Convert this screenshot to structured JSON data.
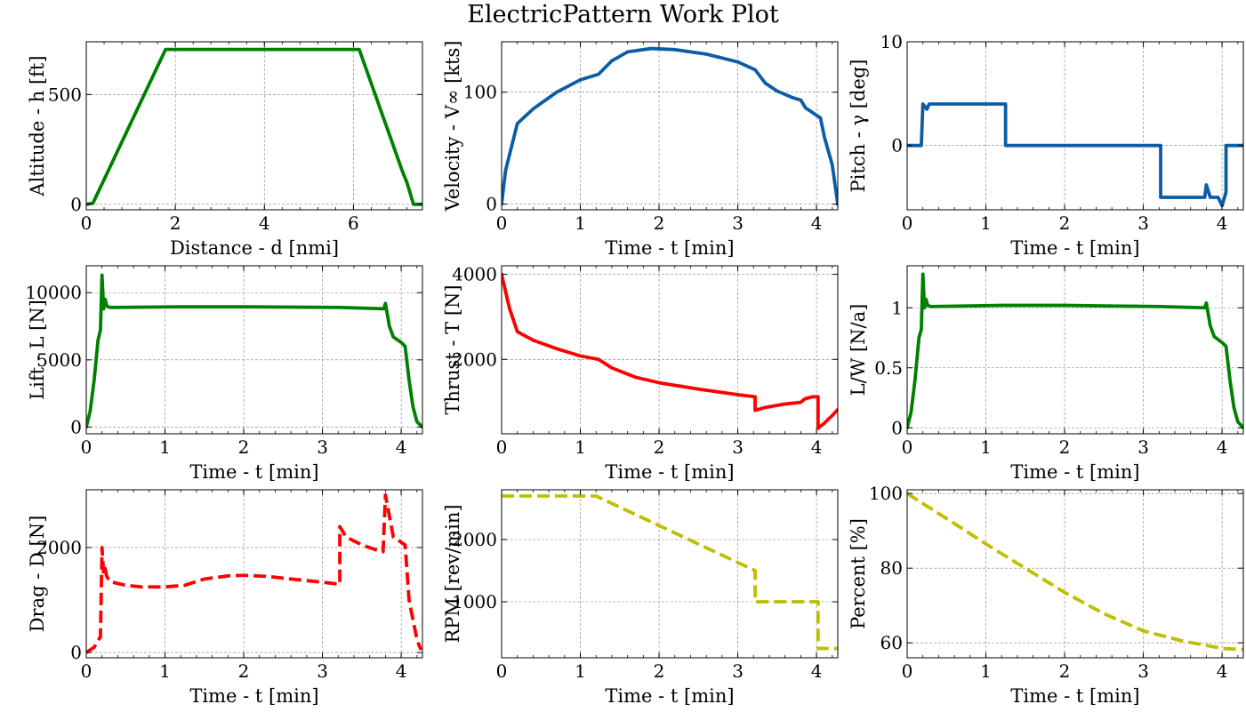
{
  "title": "ElectricPattern Work Plot",
  "colors": {
    "green": "#008000",
    "blue": "#0c5da5",
    "red": "#ff0000",
    "yellow": "#bfbf00",
    "grid": "#808080"
  },
  "chart_data": [
    {
      "type": "line",
      "xlabel": "Distance - d [nmi]",
      "ylabel": "Altitude - h [ft]",
      "xlim": [
        0,
        7.55
      ],
      "ylim": [
        -25,
        740
      ],
      "xticks": [
        0,
        2,
        4,
        6
      ],
      "yticks": [
        0,
        500
      ],
      "grid": true,
      "series": [
        {
          "color": "#008000",
          "dashed": false,
          "x": [
            0,
            0.15,
            1.78,
            6.13,
            7.1,
            7.2,
            7.35,
            7.55
          ],
          "y": [
            0,
            5,
            705,
            705,
            150,
            100,
            0,
            0
          ]
        }
      ]
    },
    {
      "type": "line",
      "xlabel": "Time - t [min]",
      "ylabel": "Velocity - V∞ [kts]",
      "xlim": [
        0,
        4.27
      ],
      "ylim": [
        -5,
        145
      ],
      "xticks": [
        0,
        1,
        2,
        3,
        4
      ],
      "yticks": [
        0,
        100
      ],
      "grid": true,
      "series": [
        {
          "color": "#0c5da5",
          "dashed": false,
          "x": [
            0,
            0.05,
            0.2,
            0.4,
            0.7,
            1.0,
            1.23,
            1.4,
            1.6,
            1.9,
            2.2,
            2.6,
            3.0,
            3.22,
            3.35,
            3.5,
            3.7,
            3.8,
            3.86,
            4.05,
            4.1,
            4.2,
            4.27
          ],
          "y": [
            0,
            30,
            72,
            85,
            100,
            111,
            116,
            128,
            136,
            139,
            138,
            134,
            127,
            120,
            108,
            101,
            95,
            93,
            86,
            77,
            60,
            35,
            0
          ]
        }
      ]
    },
    {
      "type": "line",
      "xlabel": "Time - t [min]",
      "ylabel": "Pitch - γ [deg]",
      "xlim": [
        0,
        4.27
      ],
      "ylim": [
        -6.2,
        10
      ],
      "xticks": [
        0,
        1,
        2,
        3,
        4
      ],
      "yticks": [
        0,
        10
      ],
      "grid": true,
      "series": [
        {
          "color": "#0c5da5",
          "dashed": false,
          "x": [
            0,
            0.18,
            0.2,
            0.25,
            0.28,
            0.32,
            1.25,
            1.25,
            3.22,
            3.22,
            3.78,
            3.8,
            3.85,
            3.95,
            4.0,
            4.05,
            4.05,
            4.27
          ],
          "y": [
            0,
            0,
            4,
            3.5,
            4,
            4,
            4,
            0,
            0,
            -5,
            -5,
            -3.8,
            -5,
            -5,
            -5.8,
            -4.5,
            0,
            0
          ]
        }
      ]
    },
    {
      "type": "line",
      "xlabel": "Time - t [min]",
      "ylabel": "Lift - L [N]",
      "xlim": [
        0,
        4.27
      ],
      "ylim": [
        -500,
        12000
      ],
      "xticks": [
        0,
        1,
        2,
        3,
        4
      ],
      "yticks": [
        0,
        5000,
        10000
      ],
      "grid": true,
      "series": [
        {
          "color": "#008000",
          "dashed": false,
          "x": [
            0,
            0.05,
            0.1,
            0.15,
            0.18,
            0.2,
            0.22,
            0.24,
            0.26,
            0.3,
            1.2,
            2.0,
            3.22,
            3.78,
            3.8,
            3.85,
            3.9,
            4.0,
            4.05,
            4.1,
            4.15,
            4.2,
            4.27
          ],
          "y": [
            0,
            1200,
            3500,
            6500,
            7200,
            11300,
            8800,
            9500,
            9000,
            8900,
            8950,
            8950,
            8900,
            8800,
            9200,
            7500,
            6700,
            6300,
            6000,
            3500,
            1500,
            400,
            0
          ]
        }
      ]
    },
    {
      "type": "line",
      "xlabel": "Time - t [min]",
      "ylabel": "Thrust - T [N]",
      "xlim": [
        0,
        4.27
      ],
      "ylim": [
        250,
        4200
      ],
      "xticks": [
        0,
        1,
        2,
        3,
        4
      ],
      "yticks": [
        2000,
        4000
      ],
      "grid": true,
      "series": [
        {
          "color": "#ff0000",
          "dashed": false,
          "x": [
            0,
            0.05,
            0.1,
            0.2,
            0.4,
            0.7,
            1.0,
            1.23,
            1.4,
            1.7,
            2.0,
            2.5,
            3.0,
            3.22,
            3.22,
            3.35,
            3.6,
            3.8,
            3.85,
            3.95,
            4.02,
            4.02,
            4.1,
            4.2,
            4.27
          ],
          "y": [
            4000,
            3600,
            3200,
            2650,
            2450,
            2250,
            2080,
            2000,
            1800,
            1580,
            1450,
            1300,
            1170,
            1120,
            800,
            870,
            950,
            990,
            1070,
            1120,
            1120,
            380,
            500,
            680,
            820
          ]
        }
      ]
    },
    {
      "type": "line",
      "xlabel": "Time - t [min]",
      "ylabel": "L/W [N/a]",
      "xlim": [
        0,
        4.27
      ],
      "ylim": [
        -0.05,
        1.35
      ],
      "xticks": [
        0,
        1,
        2,
        3,
        4
      ],
      "yticks": [
        0.0,
        0.5,
        1.0
      ],
      "grid": true,
      "series": [
        {
          "color": "#008000",
          "dashed": false,
          "x": [
            0,
            0.05,
            0.1,
            0.15,
            0.18,
            0.2,
            0.22,
            0.24,
            0.26,
            0.3,
            1.2,
            2.0,
            3.22,
            3.78,
            3.8,
            3.85,
            3.9,
            4.0,
            4.05,
            4.1,
            4.15,
            4.2,
            4.27
          ],
          "y": [
            0,
            0.13,
            0.4,
            0.75,
            0.82,
            1.28,
            1.0,
            1.07,
            1.02,
            1.01,
            1.02,
            1.02,
            1.01,
            1.0,
            1.04,
            0.85,
            0.76,
            0.71,
            0.68,
            0.4,
            0.17,
            0.05,
            0
          ]
        }
      ]
    },
    {
      "type": "line",
      "xlabel": "Time - t [min]",
      "ylabel": "Drag - D [N]",
      "xlim": [
        0,
        4.27
      ],
      "ylim": [
        -100,
        3100
      ],
      "xticks": [
        0,
        1,
        2,
        3,
        4
      ],
      "yticks": [
        0,
        2000
      ],
      "grid": true,
      "series": [
        {
          "color": "#ff0000",
          "dashed": true,
          "x": [
            0,
            0.1,
            0.18,
            0.2,
            0.22,
            0.24,
            0.26,
            0.3,
            0.5,
            0.7,
            1.0,
            1.25,
            1.5,
            1.8,
            2.0,
            2.3,
            2.6,
            3.0,
            3.22,
            3.22,
            3.3,
            3.5,
            3.75,
            3.77,
            3.8,
            3.85,
            3.9,
            4.0,
            4.05,
            4.1,
            4.2,
            4.25
          ],
          "y": [
            0,
            100,
            300,
            2000,
            1500,
            1600,
            1450,
            1350,
            1280,
            1250,
            1250,
            1280,
            1400,
            1460,
            1470,
            1450,
            1400,
            1340,
            1300,
            2400,
            2200,
            2050,
            1920,
            1920,
            3000,
            2600,
            2200,
            2100,
            2050,
            1000,
            250,
            50
          ]
        }
      ]
    },
    {
      "type": "line",
      "xlabel": "Time - t [min]",
      "ylabel": "RPM [rev/min]",
      "xlim": [
        0,
        4.27
      ],
      "ylim": [
        100,
        2800
      ],
      "xticks": [
        0,
        1,
        2,
        3,
        4
      ],
      "yticks": [
        1000,
        2000
      ],
      "grid": true,
      "series": [
        {
          "color": "#bfbf00",
          "dashed": true,
          "x": [
            0,
            1.2,
            3.22,
            3.22,
            4.02,
            4.02,
            4.27
          ],
          "y": [
            2700,
            2700,
            1500,
            1000,
            1000,
            250,
            250
          ]
        }
      ]
    },
    {
      "type": "line",
      "xlabel": "Time - t [min]",
      "ylabel": "Percent [%]",
      "xlim": [
        0,
        4.27
      ],
      "ylim": [
        56,
        101
      ],
      "xticks": [
        0,
        1,
        2,
        3,
        4
      ],
      "yticks": [
        60,
        80,
        100
      ],
      "grid": true,
      "series": [
        {
          "color": "#bfbf00",
          "dashed": true,
          "x": [
            0,
            0.5,
            1.0,
            1.5,
            2.0,
            2.5,
            3.0,
            3.5,
            4.0,
            4.27
          ],
          "y": [
            100,
            93.3,
            86.5,
            80.0,
            73.5,
            67.8,
            63.2,
            60.5,
            58.5,
            58.2
          ]
        }
      ]
    }
  ]
}
